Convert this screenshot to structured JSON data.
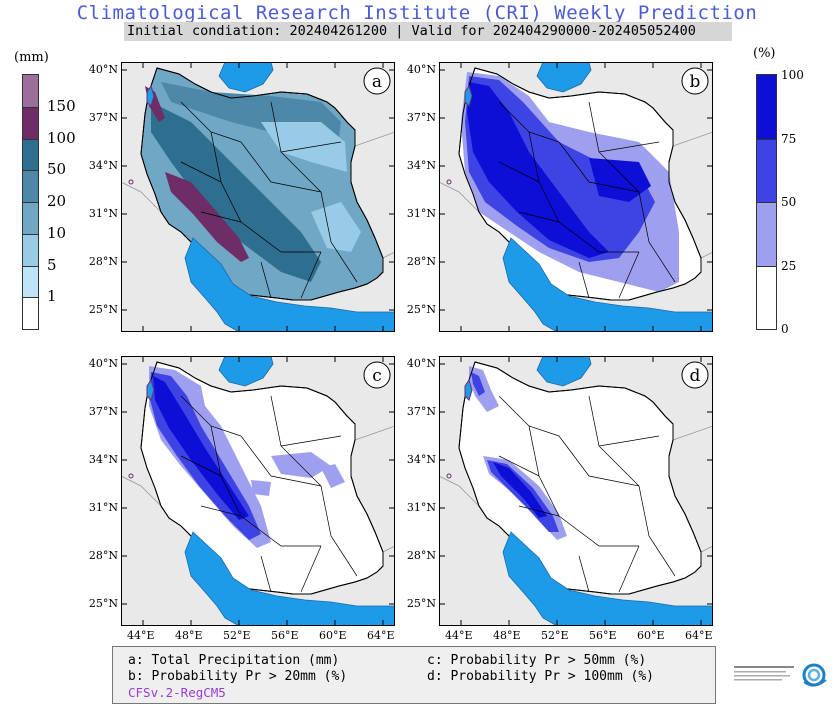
{
  "header": {
    "title": "Climatological Research Institute (CRI) Weekly Prediction",
    "subtitle": "Initial condiation: 202404261200 | Valid for 202404290000-202405052400"
  },
  "left_colorbar": {
    "unit": "(mm)",
    "labels": [
      "150",
      "100",
      "50",
      "20",
      "10",
      "5",
      "1"
    ],
    "colors": [
      "#9b6f9a",
      "#6e2d66",
      "#2e6f8f",
      "#4d88a8",
      "#6fa7c4",
      "#98cbe6",
      "#bfe4f7",
      "#ffffff"
    ]
  },
  "right_colorbar": {
    "unit": "(%)",
    "labels": [
      "100",
      "75",
      "50",
      "25",
      "0"
    ],
    "colors": [
      "#0d0fd6",
      "#3e44e4",
      "#9ea0ef",
      "#ffffff"
    ]
  },
  "panels": [
    {
      "letter": "a"
    },
    {
      "letter": "b"
    },
    {
      "letter": "c"
    },
    {
      "letter": "d"
    }
  ],
  "axes": {
    "lat_labels": [
      "40°N",
      "37°N",
      "34°N",
      "31°N",
      "28°N",
      "25°N"
    ],
    "lon_labels": [
      "44°E",
      "48°E",
      "52°E",
      "56°E",
      "60°E",
      "64°E"
    ]
  },
  "legend": {
    "a": "a: Total Precipitation (mm)",
    "b": "b: Probability Pr > 20mm (%)",
    "c": "c: Probability Pr > 50mm (%)",
    "d": "d: Probability Pr > 100mm (%)",
    "model": "CFSv.2-RegCM5"
  },
  "colors": {
    "sea": "#1e9be8",
    "land": "#e9e9e9",
    "title": "#4a5bd6",
    "model_text": "#9a3cd9"
  }
}
